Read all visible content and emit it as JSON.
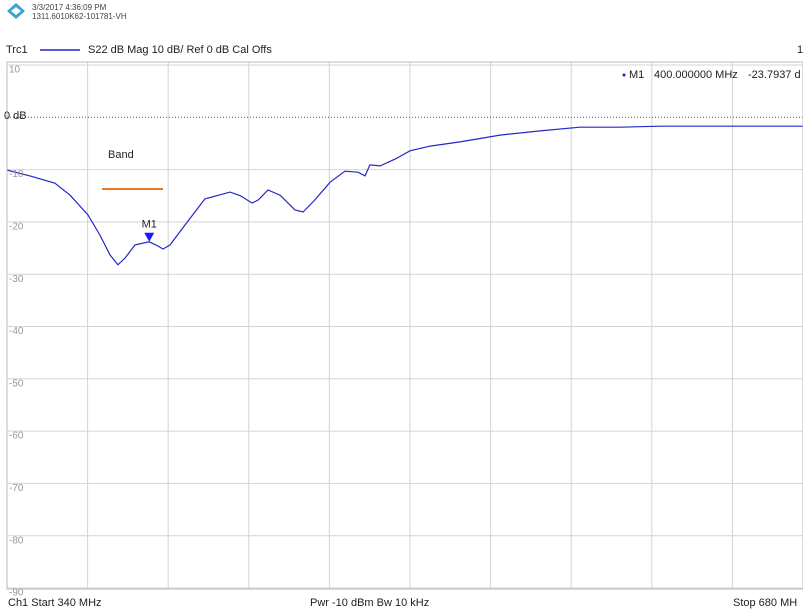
{
  "chart_data": {
    "type": "line",
    "timestamp": "3/3/2017 4:36:09 PM",
    "device_id": "1311.6010K62-101781-VH",
    "trace_name": "Trc1",
    "trace_settings": "S22  dB Mag  10 dB/ Ref 0 dB  Cal Offs",
    "trace_index": "1",
    "x": [
      340,
      349.7,
      360.2,
      366.6,
      374.2,
      379.2,
      383.4,
      386.8,
      389.8,
      394,
      400,
      403.7,
      405.8,
      408.8,
      415.1,
      423.5,
      434.1,
      438.5,
      443.4,
      446,
      450.1,
      455.2,
      461.5,
      464.9,
      469.9,
      476.3,
      482.6,
      488.1,
      491,
      493.1,
      497.4,
      503.7,
      510,
      518.5,
      531.1,
      548,
      564.9,
      581.7,
      598.6,
      615.5,
      640.8,
      675.8
    ],
    "series": [
      {
        "name": "S22",
        "color": "#2626c8",
        "values": [
          -10.1,
          -11.2,
          -12.6,
          -14.9,
          -18.7,
          -22.5,
          -26.3,
          -28.2,
          -26.9,
          -24.4,
          -23.8,
          -24.6,
          -25.2,
          -24.4,
          -20.6,
          -15.6,
          -14.3,
          -15,
          -16.4,
          -15.8,
          -13.9,
          -14.9,
          -17.7,
          -18.1,
          -15.8,
          -12.4,
          -10.3,
          -10.5,
          -11.2,
          -9.1,
          -9.3,
          -8,
          -6.4,
          -5.5,
          -4.7,
          -3.4,
          -2.6,
          -1.9,
          -1.9,
          -1.7,
          -1.7,
          -1.7
        ]
      }
    ],
    "xlim": [
      340,
      680
    ],
    "xticks": [
      340,
      374,
      408,
      442,
      476,
      510,
      544,
      578,
      612,
      646,
      680
    ],
    "ylim": [
      -90,
      10
    ],
    "yticks": [
      10,
      {
        "value": 0,
        "label": "0 dB"
      },
      -10,
      -20,
      -30,
      -40,
      -50,
      -60,
      -70,
      -80,
      -90
    ],
    "grid": true,
    "marker": {
      "name": "M1",
      "x": 400,
      "value": -23.7937,
      "x_label": "400.000000  MHz",
      "value_label": "-23.7937 d",
      "color": "#1a1aff"
    },
    "annotation": {
      "text": "Band",
      "color": "#e8782a"
    },
    "footer": {
      "start": "Ch1  Start  340 MHz",
      "power": "Pwr  -10 dBm  Bw  10 kHz",
      "stop": "Stop  680 MH"
    }
  }
}
